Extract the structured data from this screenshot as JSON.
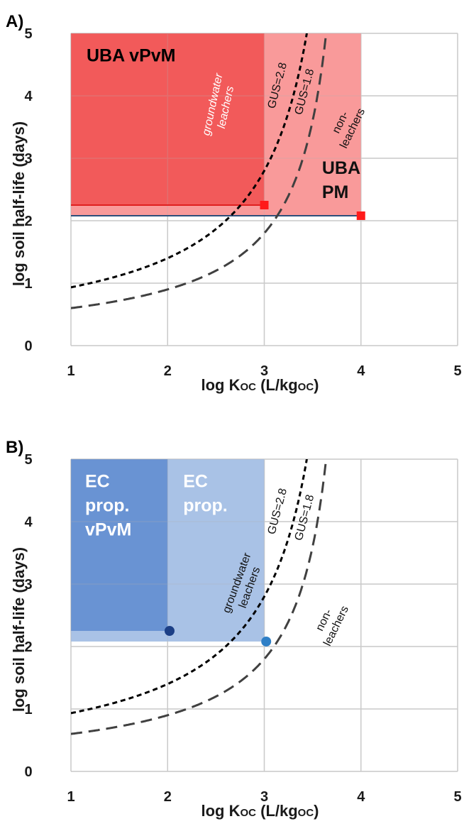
{
  "chart_data": [
    {
      "type": "area",
      "panel": "A)",
      "xlabel": "log K_OC (L/kg_OC)",
      "ylabel": "log soil half-life (days)",
      "xlim": [
        1,
        5
      ],
      "ylim": [
        0,
        5
      ],
      "xticks": [
        "1",
        "2",
        "3",
        "4",
        "5"
      ],
      "yticks": [
        "0",
        "1",
        "2",
        "3",
        "4",
        "5"
      ],
      "grid": true,
      "regions": [
        {
          "name": "UBA PM",
          "label_lines": [
            "UBA",
            "PM"
          ],
          "x": [
            1,
            4
          ],
          "y": [
            2.08,
            5
          ],
          "color": "#f99a9a"
        },
        {
          "name": "UBA vPvM",
          "label_lines": [
            "UBA vPvM"
          ],
          "x": [
            1,
            3
          ],
          "y": [
            2.25,
            5
          ],
          "color": "#f25a5a"
        }
      ],
      "threshold_lines": [
        {
          "y": 2.25,
          "x": [
            1,
            3
          ],
          "color": "#e02020"
        },
        {
          "y": 2.08,
          "x": [
            1,
            4
          ],
          "color": "#2e4f7a"
        }
      ],
      "markers": [
        {
          "x": 3,
          "y": 2.25,
          "shape": "square",
          "color": "#ff1a1a"
        },
        {
          "x": 4,
          "y": 2.08,
          "shape": "square",
          "color": "#ff1a1a"
        }
      ],
      "curves": [
        {
          "name": "GUS=2.8",
          "gus": 2.8,
          "style": "short-dash",
          "color": "#000000"
        },
        {
          "name": "GUS=1.8",
          "gus": 1.8,
          "style": "long-dash",
          "color": "#404040"
        }
      ],
      "annotations": [
        {
          "text_lines": [
            "groundwater",
            "leachers"
          ],
          "x": 2.5,
          "y": 3.85,
          "rotate": -78,
          "color": "#ffffff",
          "style": "italic"
        },
        {
          "text_lines": [
            "GUS=2.8"
          ],
          "x": 3.17,
          "y": 4.15,
          "rotate": -75,
          "color": "#111111"
        },
        {
          "text_lines": [
            "GUS=1.8"
          ],
          "x": 3.45,
          "y": 4.05,
          "rotate": -75,
          "color": "#111111"
        },
        {
          "text_lines": [
            "non-",
            "leachers"
          ],
          "x": 3.82,
          "y": 3.55,
          "rotate": -64,
          "color": "#111111"
        }
      ]
    },
    {
      "type": "area",
      "panel": "B)",
      "xlabel": "log K_OC (L/kg_OC)",
      "ylabel": "log soil half-life (days)",
      "xlim": [
        1,
        5
      ],
      "ylim": [
        0,
        5
      ],
      "xticks": [
        "1",
        "2",
        "3",
        "4",
        "5"
      ],
      "yticks": [
        "0",
        "1",
        "2",
        "3",
        "4",
        "5"
      ],
      "grid": true,
      "regions": [
        {
          "name": "EC prop.",
          "label_lines": [
            "EC",
            "prop."
          ],
          "x": [
            1,
            3
          ],
          "y": [
            2.08,
            5
          ],
          "color": "#a9c2e6"
        },
        {
          "name": "EC prop. vPvM",
          "label_lines": [
            "EC",
            "prop.",
            "vPvM"
          ],
          "x": [
            1,
            2
          ],
          "y": [
            2.25,
            5
          ],
          "color": "#6993d3"
        }
      ],
      "threshold_lines": [],
      "markers": [
        {
          "x": 2.02,
          "y": 2.25,
          "shape": "circle",
          "color": "#1c3f86"
        },
        {
          "x": 3.02,
          "y": 2.08,
          "shape": "circle",
          "color": "#2f7fc6"
        }
      ],
      "curves": [
        {
          "name": "GUS=2.8",
          "gus": 2.8,
          "style": "short-dash",
          "color": "#000000"
        },
        {
          "name": "GUS=1.8",
          "gus": 1.8,
          "style": "long-dash",
          "color": "#404040"
        }
      ],
      "annotations": [
        {
          "text_lines": [
            "groundwater",
            "leachers"
          ],
          "x": 2.75,
          "y": 3.0,
          "rotate": -70,
          "color": "#111111"
        },
        {
          "text_lines": [
            "GUS=2.8"
          ],
          "x": 3.17,
          "y": 4.15,
          "rotate": -75,
          "color": "#111111"
        },
        {
          "text_lines": [
            "GUS=1.8"
          ],
          "x": 3.45,
          "y": 4.05,
          "rotate": -75,
          "color": "#111111"
        },
        {
          "text_lines": [
            "non-",
            "leachers"
          ],
          "x": 3.65,
          "y": 2.4,
          "rotate": -64,
          "color": "#111111"
        }
      ]
    }
  ]
}
